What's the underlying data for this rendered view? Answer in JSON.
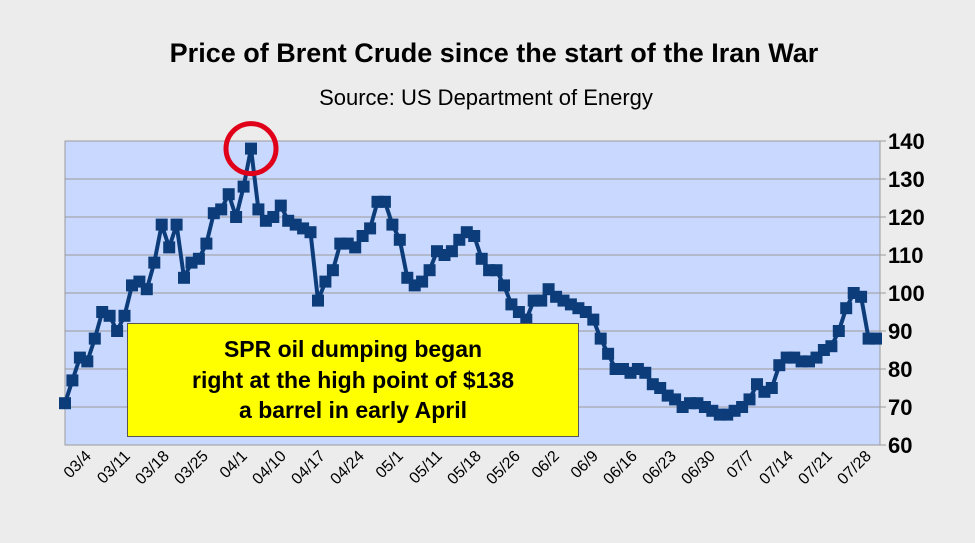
{
  "colors": {
    "background": "#ececec",
    "plot_area": "#c9d8ff",
    "grid": "#9a9a9a",
    "series": "#0c3d7a",
    "highlight_circle": "#e0001a",
    "callout_fill": "#ffff00"
  },
  "callout": {
    "text": "SPR oil dumping began\nright at the high point of $138\na barrel in early April"
  },
  "chart_data": {
    "type": "line",
    "title": "Price of Brent Crude since the start of the Iran War",
    "subtitle": "Source: US Department of Energy",
    "xlabel": "",
    "ylabel": "",
    "ylim": [
      60,
      140
    ],
    "yticks": [
      60,
      70,
      80,
      90,
      100,
      110,
      120,
      130,
      140
    ],
    "y_axis_side": "right",
    "grid": true,
    "legend": "none",
    "marker": "square",
    "x_tick_labels": [
      "03/4",
      "03/11",
      "03/18",
      "03/25",
      "04/1",
      "04/10",
      "04/17",
      "04/24",
      "05/1",
      "05/11",
      "05/18",
      "05/26",
      "06/2",
      "06/9",
      "06/16",
      "06/23",
      "06/30",
      "07/7",
      "07/14",
      "07/21",
      "07/28"
    ],
    "highlight": {
      "label_index": 4,
      "value": 138,
      "shape": "circle"
    },
    "series": [
      {
        "values": [
          71,
          77,
          83,
          82,
          88,
          95,
          94,
          90,
          94,
          102,
          103,
          101,
          108,
          118,
          112,
          118,
          104,
          108,
          109,
          113,
          121,
          122,
          126,
          120,
          128,
          138,
          122,
          119,
          120,
          123,
          119,
          118,
          117,
          116,
          98,
          103,
          106,
          113,
          113,
          112,
          115,
          117,
          124,
          124,
          118,
          114,
          104,
          102,
          103,
          106,
          111,
          110,
          111,
          114,
          116,
          115,
          109,
          106,
          106,
          102,
          97,
          95,
          93,
          98,
          98,
          101,
          99,
          98,
          97,
          96,
          95,
          93,
          88,
          84,
          80,
          80,
          79,
          80,
          79,
          76,
          75,
          73,
          72,
          70,
          71,
          71,
          70,
          69,
          68,
          68,
          69,
          70,
          72,
          76,
          74,
          75,
          81,
          83,
          83,
          82,
          82,
          83,
          85,
          86,
          90,
          96,
          100,
          99,
          88,
          88
        ]
      }
    ]
  }
}
